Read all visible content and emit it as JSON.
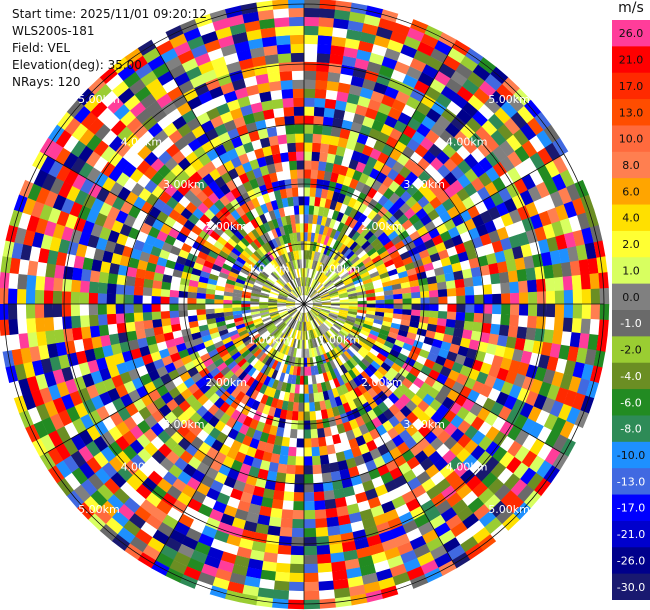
{
  "header": {
    "start_time": "Start time: 2025/11/01 09:20:12",
    "station": "WLS200s-181",
    "field": "Field: VEL",
    "elevation": "Elevation(deg): 35.00",
    "nrays": "NRays: 120"
  },
  "colorbar": {
    "unit": "m/s",
    "levels": [
      {
        "label": "26.0",
        "color": "#ff3d9a"
      },
      {
        "label": "21.0",
        "color": "#ff0000"
      },
      {
        "label": "17.0",
        "color": "#ff2a00"
      },
      {
        "label": "13.0",
        "color": "#ff4d00"
      },
      {
        "label": "10.0",
        "color": "#ff6a3d"
      },
      {
        "label": "8.0",
        "color": "#ff7f50"
      },
      {
        "label": "6.0",
        "color": "#ffa500"
      },
      {
        "label": "4.0",
        "color": "#ffe000"
      },
      {
        "label": "2.0",
        "color": "#ffff33"
      },
      {
        "label": "1.0",
        "color": "#d8ff60"
      },
      {
        "label": "0.0",
        "color": "#808080"
      },
      {
        "label": "-1.0",
        "color": "#6a6a6a"
      },
      {
        "label": "-2.0",
        "color": "#9acd32"
      },
      {
        "label": "-4.0",
        "color": "#6b8e23"
      },
      {
        "label": "-6.0",
        "color": "#228b22"
      },
      {
        "label": "-8.0",
        "color": "#2e8b57"
      },
      {
        "label": "-10.0",
        "color": "#1e90ff"
      },
      {
        "label": "-13.0",
        "color": "#4169e1"
      },
      {
        "label": "-17.0",
        "color": "#0000ff"
      },
      {
        "label": "-21.0",
        "color": "#0000cd"
      },
      {
        "label": "-26.0",
        "color": "#00008b"
      },
      {
        "label": "-30.0",
        "color": "#191970"
      }
    ]
  },
  "ppi": {
    "n_rays": 120,
    "range_labels": [
      "1.00km",
      "2.00km",
      "3.00km",
      "4.00km",
      "5.00km"
    ],
    "inner_cmap": [
      "#808080",
      "#a0a0a0",
      "#6a6a6a",
      "#9acd32",
      "#ffff33",
      "#ffe000",
      "#d8ff60",
      "#6b8e23",
      "#ffffff"
    ],
    "mid_cmap": [
      "#9acd32",
      "#6b8e23",
      "#228b22",
      "#ffff33",
      "#ffe000",
      "#808080",
      "#ffffff",
      "#ffa500",
      "#4169e1"
    ]
  }
}
